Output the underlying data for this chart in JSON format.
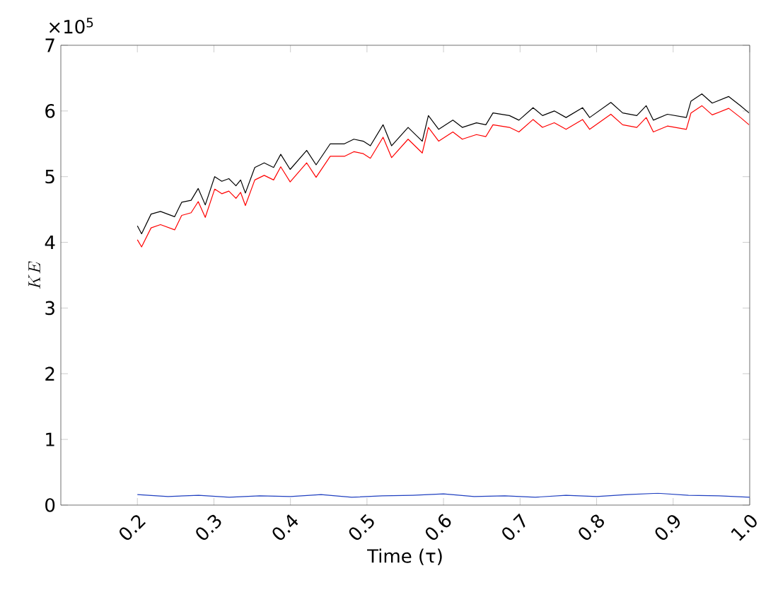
{
  "chart_data": {
    "type": "line",
    "xlabel": "Time (τ)",
    "ylabel": "KE",
    "annotations": [
      "×10$^{5}$"
    ],
    "xlim": [
      0.1,
      1.0
    ],
    "ylim": [
      0,
      7
    ],
    "xticks": [
      0.2,
      0.3,
      0.4,
      0.5,
      0.6,
      0.7,
      0.8,
      0.9,
      {
        "value": 1.0,
        "label": "1.0"
      }
    ],
    "yticks": [
      0,
      1,
      2,
      3,
      4,
      5,
      6,
      7
    ],
    "grid": false,
    "marker": "none",
    "line_style": "solid",
    "series": [
      {
        "color": "#000000",
        "x": [
          0.2,
          0.2055,
          0.2179,
          0.2302,
          0.2487,
          0.2579,
          0.2702,
          0.2795,
          0.2887,
          0.301,
          0.3103,
          0.3195,
          0.3288,
          0.3349,
          0.3411,
          0.3534,
          0.3657,
          0.378,
          0.3873,
          0.3996,
          0.4212,
          0.4335,
          0.452,
          0.4705,
          0.4828,
          0.4951,
          0.5044,
          0.521,
          0.5321,
          0.5537,
          0.5722,
          0.5802,
          0.5937,
          0.6122,
          0.6245,
          0.643,
          0.6553,
          0.6646,
          0.6861,
          0.6985,
          0.717,
          0.7293,
          0.7447,
          0.7601,
          0.7816,
          0.7909,
          0.8186,
          0.834,
          0.8525,
          0.8648,
          0.8741,
          0.8925,
          0.9172,
          0.9233,
          0.9375,
          0.951,
          0.9726,
          0.988,
          0.9991
        ],
        "values": [
          4.25,
          4.13,
          4.43,
          4.47,
          4.39,
          4.61,
          4.64,
          4.82,
          4.57,
          5.0,
          4.93,
          4.97,
          4.86,
          4.95,
          4.75,
          5.14,
          5.21,
          5.14,
          5.34,
          5.11,
          5.4,
          5.18,
          5.5,
          5.5,
          5.57,
          5.54,
          5.47,
          5.79,
          5.47,
          5.75,
          5.54,
          5.93,
          5.72,
          5.86,
          5.75,
          5.82,
          5.79,
          5.97,
          5.93,
          5.86,
          6.05,
          5.93,
          6.0,
          5.9,
          6.05,
          5.9,
          6.13,
          5.97,
          5.93,
          6.08,
          5.86,
          5.95,
          5.9,
          6.15,
          6.26,
          6.12,
          6.22,
          6.08,
          5.97
        ]
      },
      {
        "color": "#ff0000",
        "x": [
          0.2,
          0.2055,
          0.2179,
          0.2302,
          0.2487,
          0.2579,
          0.2702,
          0.2795,
          0.2887,
          0.301,
          0.3103,
          0.3195,
          0.3288,
          0.3349,
          0.3411,
          0.3534,
          0.3657,
          0.378,
          0.3873,
          0.3996,
          0.4212,
          0.4335,
          0.452,
          0.4705,
          0.4828,
          0.4951,
          0.5044,
          0.521,
          0.5321,
          0.5537,
          0.5722,
          0.5802,
          0.5937,
          0.6122,
          0.6245,
          0.643,
          0.6553,
          0.6646,
          0.6861,
          0.6985,
          0.717,
          0.7293,
          0.7447,
          0.7601,
          0.7816,
          0.7909,
          0.8186,
          0.834,
          0.8525,
          0.8648,
          0.8741,
          0.8925,
          0.9172,
          0.9233,
          0.9375,
          0.951,
          0.9726,
          0.988,
          0.9991
        ],
        "values": [
          4.04,
          3.93,
          4.22,
          4.27,
          4.19,
          4.41,
          4.45,
          4.62,
          4.38,
          4.81,
          4.74,
          4.78,
          4.67,
          4.76,
          4.56,
          4.95,
          5.02,
          4.95,
          5.15,
          4.92,
          5.21,
          4.99,
          5.31,
          5.31,
          5.38,
          5.35,
          5.28,
          5.6,
          5.29,
          5.57,
          5.36,
          5.75,
          5.54,
          5.68,
          5.57,
          5.64,
          5.61,
          5.79,
          5.75,
          5.68,
          5.87,
          5.75,
          5.82,
          5.72,
          5.87,
          5.72,
          5.95,
          5.79,
          5.75,
          5.9,
          5.68,
          5.77,
          5.72,
          5.97,
          6.08,
          5.94,
          6.04,
          5.9,
          5.79
        ]
      },
      {
        "color": "#2040c0",
        "x": [
          0.2,
          0.24,
          0.28,
          0.32,
          0.36,
          0.4,
          0.44,
          0.48,
          0.52,
          0.56,
          0.6,
          0.64,
          0.68,
          0.72,
          0.76,
          0.8,
          0.84,
          0.88,
          0.92,
          0.96,
          1.0
        ],
        "values": [
          0.16,
          0.13,
          0.15,
          0.12,
          0.14,
          0.13,
          0.16,
          0.12,
          0.14,
          0.15,
          0.17,
          0.13,
          0.14,
          0.12,
          0.15,
          0.13,
          0.16,
          0.18,
          0.15,
          0.14,
          0.12
        ]
      }
    ]
  }
}
